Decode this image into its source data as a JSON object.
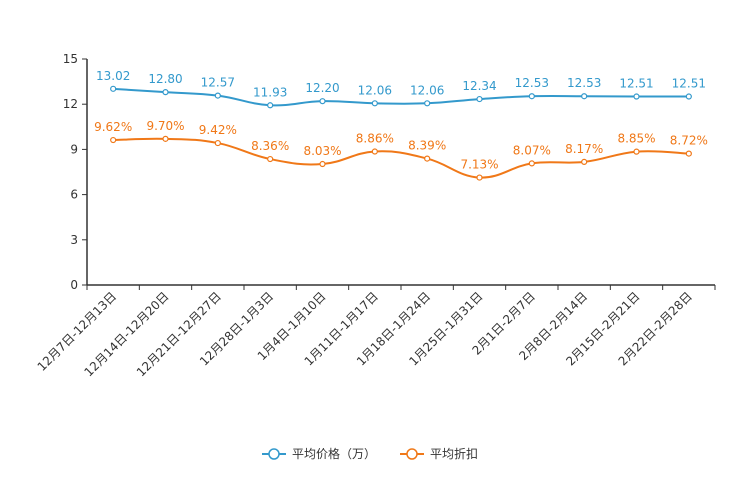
{
  "chart_data": {
    "type": "line",
    "categories": [
      "12月7日-12月13日",
      "12月14日-12月20日",
      "12月21日-12月27日",
      "12月28日-1月3日",
      "1月4日-1月10日",
      "1月11日-1月17日",
      "1月18日-1月24日",
      "1月25日-1月31日",
      "2月1日-2月7日",
      "2月8日-2月14日",
      "2月15日-2月21日",
      "2月22日-2月28日"
    ],
    "ylim": [
      0,
      15
    ],
    "yticks": [
      0,
      3,
      6,
      9,
      12,
      15
    ],
    "series": [
      {
        "name": "平均价格（万）",
        "color": "#3399cc",
        "values": [
          13.02,
          12.8,
          12.57,
          11.93,
          12.2,
          12.06,
          12.06,
          12.34,
          12.53,
          12.53,
          12.51,
          12.51
        ],
        "labels": [
          "13.02",
          "12.80",
          "12.57",
          "11.93",
          "12.20",
          "12.06",
          "12.06",
          "12.34",
          "12.53",
          "12.53",
          "12.51",
          "12.51"
        ]
      },
      {
        "name": "平均折扣",
        "color": "#f07818",
        "values": [
          9.62,
          9.7,
          9.42,
          8.36,
          8.03,
          8.86,
          8.39,
          7.13,
          8.07,
          8.17,
          8.85,
          8.72
        ],
        "labels": [
          "9.62%",
          "9.70%",
          "9.42%",
          "8.36%",
          "8.03%",
          "8.86%",
          "8.39%",
          "7.13%",
          "8.07%",
          "8.17%",
          "8.85%",
          "8.72%"
        ]
      }
    ],
    "legend_position": "bottom-center"
  }
}
